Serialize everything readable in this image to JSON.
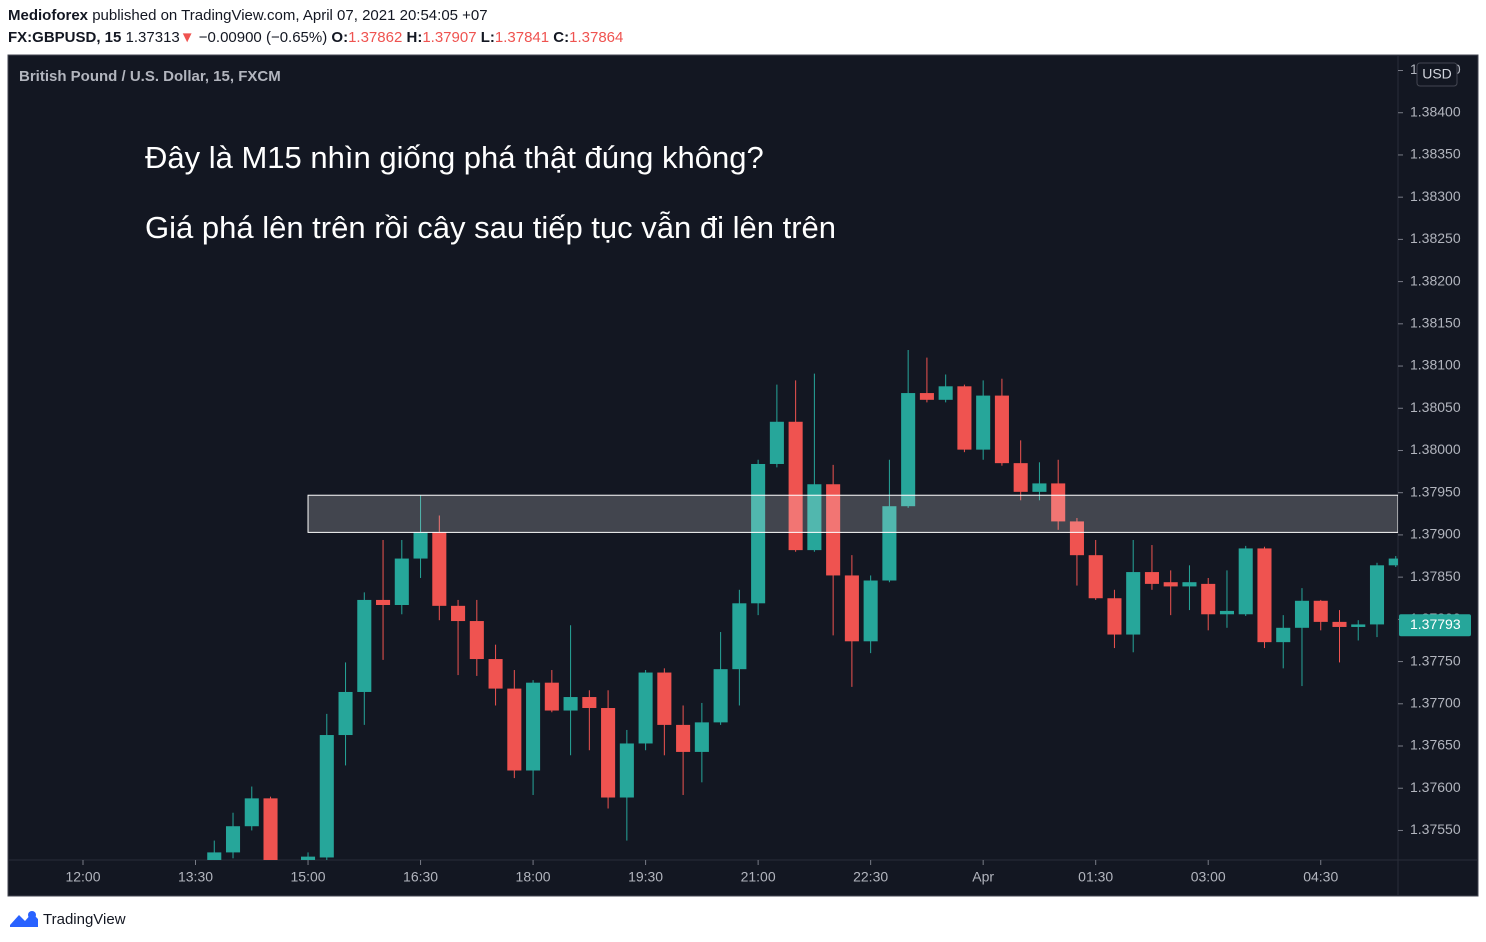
{
  "header": {
    "author": "Medioforex",
    "published": "published on TradingView.com, April 07, 2021 20:54:05 +07",
    "symbol": "FX:GBPUSD, 15",
    "price": "1.37313",
    "change_arrow": "▼",
    "change": "−0.00900 (−0.65%)",
    "ohlc": [
      {
        "label": "O:",
        "value": "1.37862"
      },
      {
        "label": "H:",
        "value": "1.37907"
      },
      {
        "label": "L:",
        "value": "1.37841"
      },
      {
        "label": "C:",
        "value": "1.37864"
      }
    ]
  },
  "footer": {
    "brand": "TradingView"
  },
  "chart_data": {
    "type": "candlestick",
    "title": "British Pound / U.S. Dollar, 15, FXCM",
    "annotations": [
      "Đây là M15 nhìn giống phá thật đúng không?",
      "Giá phá lên trên rồi cây sau tiếp tục vẫn đi lên trên"
    ],
    "currency": "USD",
    "up_color": "#26a69a",
    "down_color": "#ef5350",
    "grid": false,
    "x": [
      13.75,
      14,
      14.25,
      14.5,
      15,
      15.25,
      15.5,
      15.75,
      16,
      16.25,
      16.5,
      16.75,
      17,
      17.25,
      17.5,
      17.75,
      18,
      18.25,
      18.5,
      18.75,
      19,
      19.25,
      19.5,
      19.75,
      20,
      20.25,
      20.5,
      20.75,
      21,
      21.25,
      21.5,
      21.75,
      22,
      22.25,
      22.5,
      22.75,
      23,
      23.25,
      23.5,
      23.75,
      24,
      24.25,
      24.5,
      24.75,
      25,
      25.25,
      25.5,
      25.75,
      26,
      26.25,
      26.5,
      26.75,
      27,
      27.25,
      27.5,
      27.75,
      28,
      28.25,
      28.5,
      28.75,
      29,
      29.25,
      29.5
    ],
    "open": [
      1.3751,
      1.37524,
      1.37555,
      1.37588,
      1.3751,
      1.37518,
      1.37663,
      1.37714,
      1.37823,
      1.37817,
      1.37872,
      1.37903,
      1.37816,
      1.37798,
      1.37753,
      1.37718,
      1.37621,
      1.37725,
      1.37692,
      1.37708,
      1.37695,
      1.37589,
      1.37653,
      1.37737,
      1.37675,
      1.37643,
      1.37678,
      1.37741,
      1.37819,
      1.37984,
      1.38034,
      1.37882,
      1.3796,
      1.37852,
      1.37774,
      1.37846,
      1.37934,
      1.38068,
      1.3806,
      1.38076,
      1.38001,
      1.38065,
      1.37985,
      1.37951,
      1.37961,
      1.37916,
      1.37876,
      1.37825,
      1.37782,
      1.37856,
      1.37844,
      1.37839,
      1.37842,
      1.37806,
      1.37806,
      1.37884,
      1.37773,
      1.3779,
      1.37822,
      1.37797,
      1.37791,
      1.37794,
      1.37864
    ],
    "high": [
      1.37538,
      1.37571,
      1.37602,
      1.3759,
      1.37524,
      1.37688,
      1.37749,
      1.37832,
      1.37894,
      1.37894,
      1.37947,
      1.37923,
      1.37823,
      1.37823,
      1.3777,
      1.3774,
      1.37728,
      1.3774,
      1.37793,
      1.37716,
      1.37716,
      1.37669,
      1.3774,
      1.37742,
      1.37698,
      1.37701,
      1.37785,
      1.37835,
      1.37989,
      1.38078,
      1.38083,
      1.38091,
      1.37983,
      1.37876,
      1.37852,
      1.37989,
      1.38119,
      1.3811,
      1.3809,
      1.38078,
      1.38083,
      1.38085,
      1.38012,
      1.37986,
      1.37989,
      1.3792,
      1.37894,
      1.37835,
      1.37894,
      1.37888,
      1.37858,
      1.37864,
      1.37849,
      1.37858,
      1.37887,
      1.37886,
      1.37805,
      1.37837,
      1.37823,
      1.37811,
      1.37799,
      1.37867,
      1.37875
    ],
    "low": [
      1.375,
      1.37517,
      1.3755,
      1.3749,
      1.375,
      1.37515,
      1.37627,
      1.37675,
      1.37752,
      1.37806,
      1.37849,
      1.37799,
      1.37734,
      1.37733,
      1.37698,
      1.37612,
      1.37592,
      1.3769,
      1.37639,
      1.37645,
      1.37576,
      1.37538,
      1.37645,
      1.37639,
      1.37592,
      1.37607,
      1.37675,
      1.37698,
      1.37805,
      1.3798,
      1.3788,
      1.3788,
      1.37781,
      1.3772,
      1.3776,
      1.37844,
      1.37932,
      1.38057,
      1.38057,
      1.37998,
      1.37989,
      1.37982,
      1.37941,
      1.37941,
      1.37906,
      1.3784,
      1.37823,
      1.37766,
      1.37761,
      1.37835,
      1.37805,
      1.37811,
      1.37787,
      1.3779,
      1.37804,
      1.37766,
      1.37742,
      1.37721,
      1.37787,
      1.37749,
      1.37775,
      1.37779,
      1.37862
    ],
    "close": [
      1.37524,
      1.37555,
      1.37588,
      1.375,
      1.37519,
      1.37663,
      1.37714,
      1.37823,
      1.37817,
      1.37872,
      1.37903,
      1.37816,
      1.37798,
      1.37753,
      1.37718,
      1.37621,
      1.37725,
      1.37692,
      1.37708,
      1.37695,
      1.37589,
      1.37653,
      1.37737,
      1.37675,
      1.37643,
      1.37678,
      1.37741,
      1.37819,
      1.37984,
      1.38034,
      1.37882,
      1.3796,
      1.37852,
      1.37774,
      1.37846,
      1.37934,
      1.38068,
      1.3806,
      1.38076,
      1.38001,
      1.38065,
      1.37985,
      1.37951,
      1.37961,
      1.37916,
      1.37876,
      1.37825,
      1.37782,
      1.37856,
      1.37842,
      1.37839,
      1.37844,
      1.37806,
      1.3781,
      1.37884,
      1.37773,
      1.3779,
      1.37822,
      1.37797,
      1.37791,
      1.37794,
      1.37864,
      1.37872
    ],
    "xlim": [
      11.027,
      29.53
    ],
    "xticks": [
      {
        "value": 12,
        "label": "12:00"
      },
      {
        "value": 13.5,
        "label": "13:30"
      },
      {
        "value": 15,
        "label": "15:00"
      },
      {
        "value": 16.5,
        "label": "16:30"
      },
      {
        "value": 18,
        "label": "18:00"
      },
      {
        "value": 19.5,
        "label": "19:30"
      },
      {
        "value": 21,
        "label": "21:00"
      },
      {
        "value": 22.5,
        "label": "22:30"
      },
      {
        "value": 24,
        "label": "Apr"
      },
      {
        "value": 25.5,
        "label": "01:30"
      },
      {
        "value": 27,
        "label": "03:00"
      },
      {
        "value": 28.5,
        "label": "04:30"
      }
    ],
    "ylim": [
      1.37515,
      1.38466
    ],
    "yticks": [
      {
        "value": 1.3755,
        "label": "1.37550"
      },
      {
        "value": 1.376,
        "label": "1.37600"
      },
      {
        "value": 1.3765,
        "label": "1.37650"
      },
      {
        "value": 1.377,
        "label": "1.37700"
      },
      {
        "value": 1.3775,
        "label": "1.37750"
      },
      {
        "value": 1.378,
        "label": "1.37800"
      },
      {
        "value": 1.3785,
        "label": "1.37850"
      },
      {
        "value": 1.379,
        "label": "1.37900"
      },
      {
        "value": 1.3795,
        "label": "1.37950"
      },
      {
        "value": 1.38,
        "label": "1.38000"
      },
      {
        "value": 1.3805,
        "label": "1.38050"
      },
      {
        "value": 1.381,
        "label": "1.38100"
      },
      {
        "value": 1.3815,
        "label": "1.38150"
      },
      {
        "value": 1.382,
        "label": "1.38200"
      },
      {
        "value": 1.3825,
        "label": "1.38250"
      },
      {
        "value": 1.383,
        "label": "1.38300"
      },
      {
        "value": 1.3835,
        "label": "1.38350"
      },
      {
        "value": 1.384,
        "label": "1.38400"
      },
      {
        "value": 1.3845,
        "label": "1.38450"
      }
    ],
    "last_price": 1.37793,
    "zone": {
      "from": 15,
      "low": 1.37903,
      "high": 1.37947
    }
  }
}
